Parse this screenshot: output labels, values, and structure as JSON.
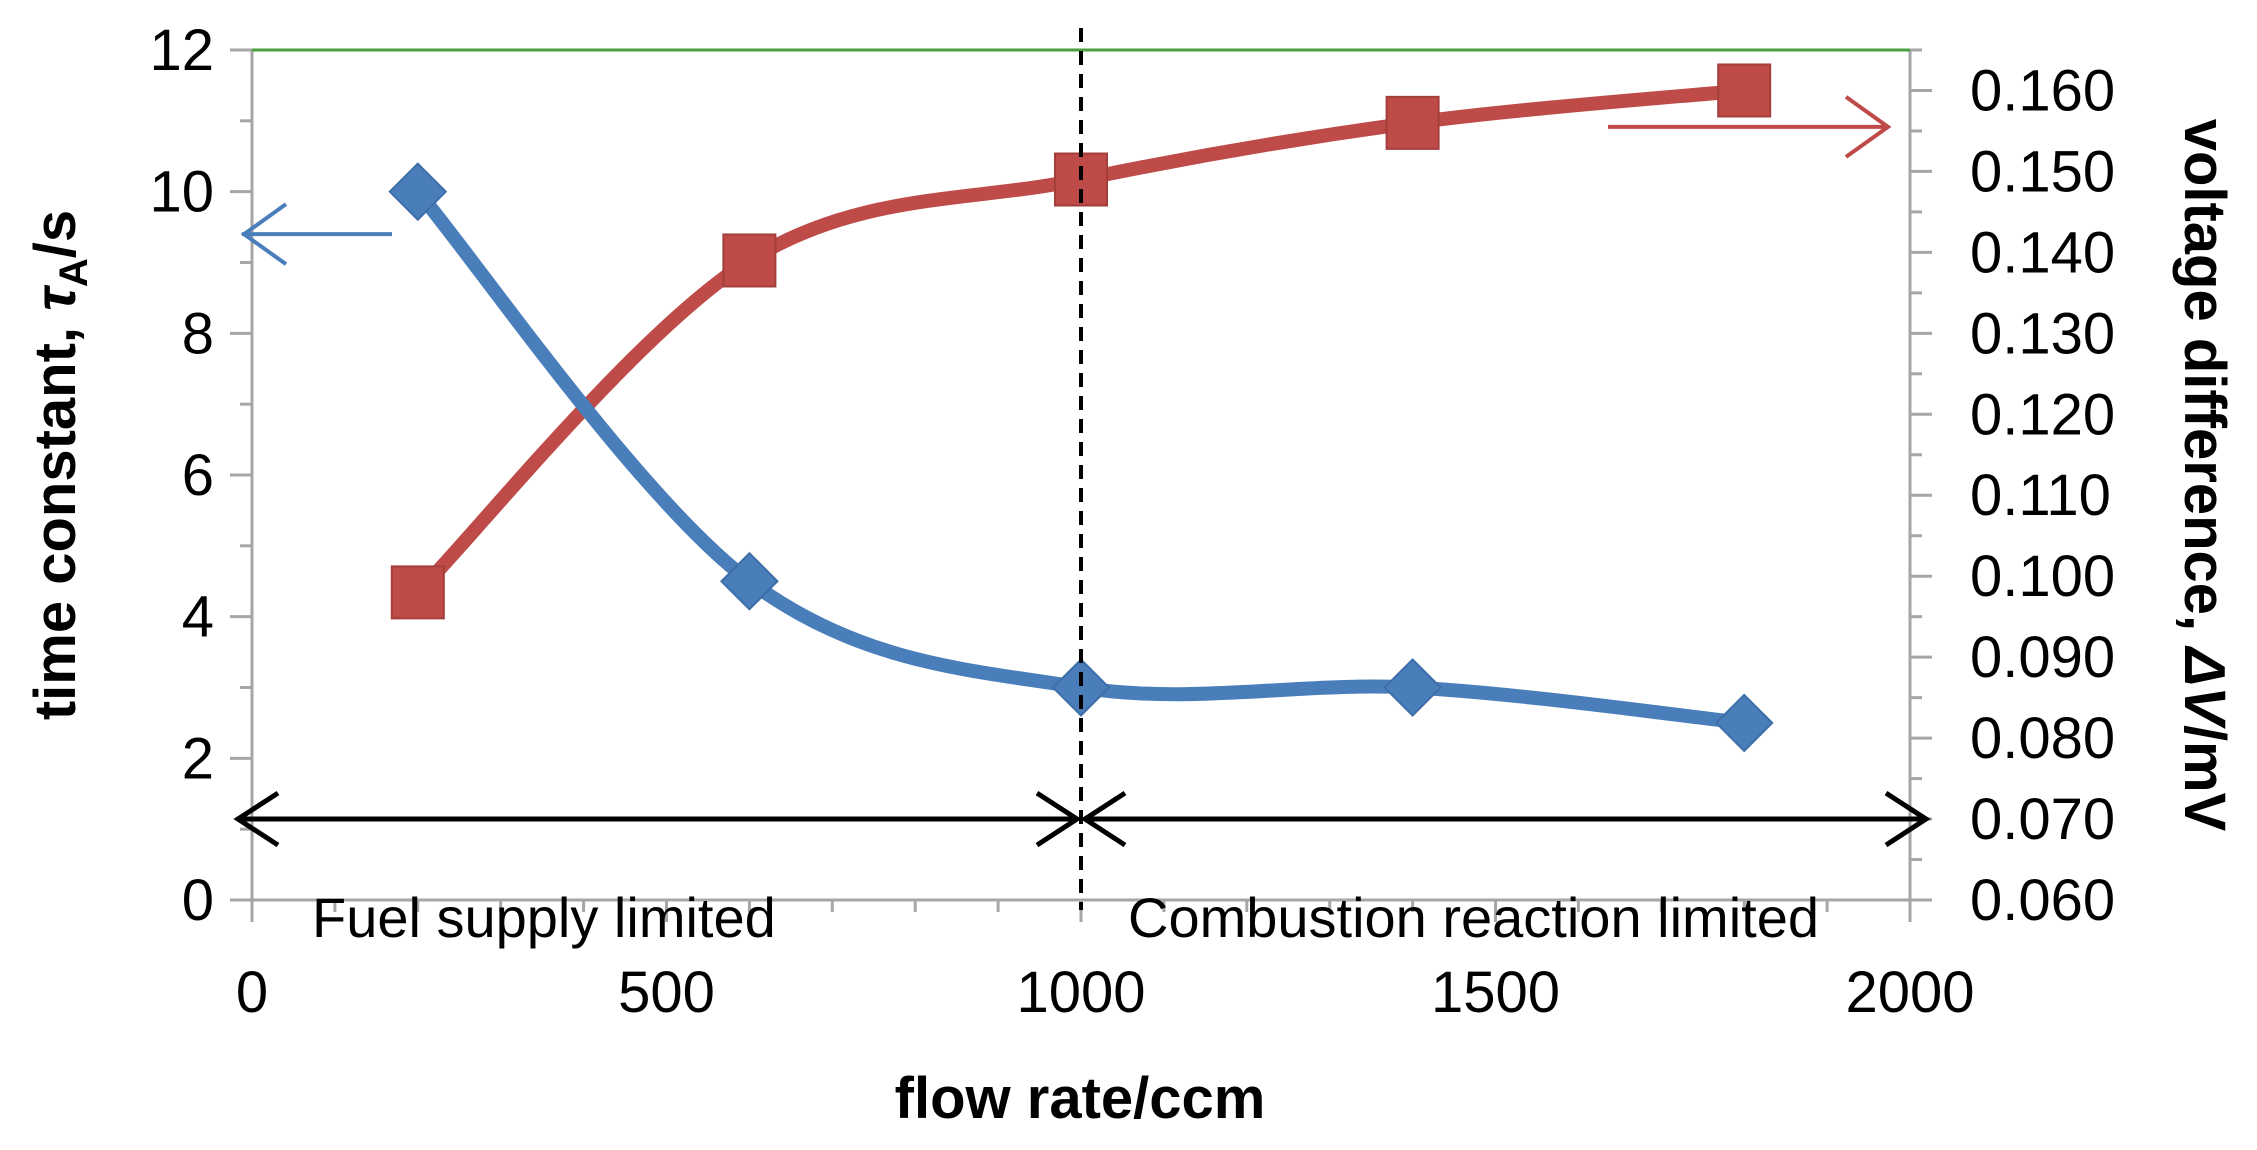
{
  "colors": {
    "tau_series": "#4a7ebb",
    "voltage_series": "#be4b48",
    "top_line": "#4aa040",
    "axis": "#a6a6a6",
    "annotation": "#000000"
  },
  "chart_data": {
    "type": "line",
    "x_axis": {
      "label": "flow rate/ccm",
      "range": [
        0,
        2000
      ],
      "ticks": [
        0,
        500,
        1000,
        1500,
        2000
      ],
      "tick_labels": [
        "0",
        "500",
        "1000",
        "1500",
        "2000"
      ]
    },
    "y_axis_left": {
      "label_main": "time constant, ",
      "label_symbol": "τ",
      "label_sub": "A",
      "label_tail": "/s",
      "range": [
        0,
        12
      ],
      "ticks": [
        0,
        2,
        4,
        6,
        8,
        10,
        12
      ],
      "tick_labels": [
        "0",
        "2",
        "4",
        "6",
        "8",
        "10",
        "12"
      ]
    },
    "y_axis_right": {
      "label_main": "voltage difference, ",
      "label_symbol": "ΔV",
      "label_tail": "/mV",
      "range": [
        0.06,
        0.165
      ],
      "ticks": [
        0.06,
        0.07,
        0.08,
        0.09,
        0.1,
        0.11,
        0.12,
        0.13,
        0.14,
        0.15,
        0.16
      ],
      "tick_labels": [
        "0.060",
        "0.070",
        "0.080",
        "0.090",
        "0.100",
        "0.110",
        "0.120",
        "0.130",
        "0.140",
        "0.150",
        "0.160"
      ]
    },
    "series": [
      {
        "name": "time constant",
        "axis": "left",
        "marker": "diamond",
        "x": [
          200,
          600,
          1000,
          1400,
          1800
        ],
        "values": [
          10,
          4.5,
          3,
          3,
          2.5
        ]
      },
      {
        "name": "voltage difference",
        "axis": "right",
        "marker": "square",
        "x": [
          200,
          600,
          1000,
          1400,
          1800
        ],
        "values": [
          0.098,
          0.139,
          0.149,
          0.156,
          0.16
        ]
      }
    ],
    "reference_lines": [
      {
        "name": "regime boundary",
        "x": 1000,
        "style": "dashed"
      },
      {
        "name": "top line",
        "y_left": 12,
        "style": "solid"
      }
    ],
    "regions": [
      {
        "label": "Fuel supply limited",
        "from": 0,
        "to": 1000
      },
      {
        "label": "Combustion reaction limited",
        "from": 1000,
        "to": 2000
      }
    ],
    "region_arrow_level_right": 0.07
  }
}
